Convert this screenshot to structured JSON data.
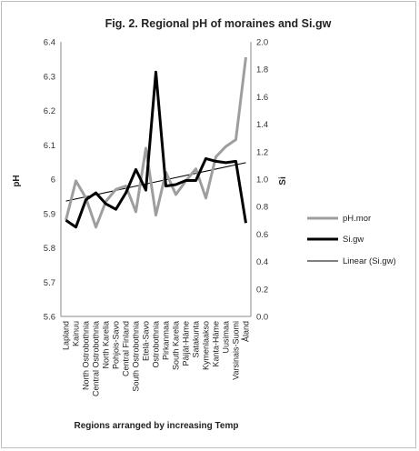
{
  "chart_data": {
    "type": "line",
    "title": "Fig. 2. Regional pH of moraines and Si.gw",
    "xlabel": "Regions arranged by increasing Temp",
    "ylabel_left": "pH",
    "ylabel_right": "Si",
    "ylim_left": [
      5.6,
      6.4
    ],
    "ylim_right": [
      0.0,
      2.0
    ],
    "yticks_left": [
      "5.6",
      "5.7",
      "5.8",
      "5.9",
      "6",
      "6.1",
      "6.2",
      "6.3",
      "6.4"
    ],
    "yticks_right": [
      "0.0",
      "0.2",
      "0.4",
      "0.6",
      "0.8",
      "1.0",
      "1.2",
      "1.4",
      "1.6",
      "1.8",
      "2.0"
    ],
    "categories": [
      "Lapland",
      "Kainuu",
      "North Ostrobothnia",
      "Central Ostrobothnia",
      "North Karelia",
      "Pohjois-Savo",
      "Central Finland",
      "South Ostrobothnia",
      "Etelä-Savo",
      "Ostrobothnia",
      "Pirkanmaa",
      "South Karelia",
      "Päijät-Häme",
      "Satakunta",
      "Kymenlaakso",
      "Kanta-Häme",
      "Uusimaa",
      "Varsinais-Suomi",
      "Åland"
    ],
    "series": [
      {
        "name": "pH.mor",
        "axis": "left",
        "color": "#9e9e9e",
        "values": [
          5.88,
          5.995,
          5.945,
          5.86,
          5.935,
          5.97,
          5.98,
          5.905,
          6.09,
          5.895,
          6.02,
          5.955,
          5.995,
          6.03,
          5.945,
          6.065,
          6.095,
          6.115,
          6.355
        ]
      },
      {
        "name": "Si.gw",
        "axis": "right",
        "color": "#000000",
        "values": [
          0.7,
          0.65,
          0.85,
          0.9,
          0.82,
          0.78,
          0.9,
          1.07,
          0.92,
          1.78,
          0.95,
          0.96,
          0.99,
          0.99,
          1.15,
          1.13,
          1.12,
          1.13,
          0.68
        ]
      }
    ],
    "trendline": {
      "name": "Linear (Si.gw)",
      "axis": "right",
      "color": "#000000",
      "from": 0.84,
      "to": 1.12
    },
    "legend_position": "right",
    "grid": false
  }
}
